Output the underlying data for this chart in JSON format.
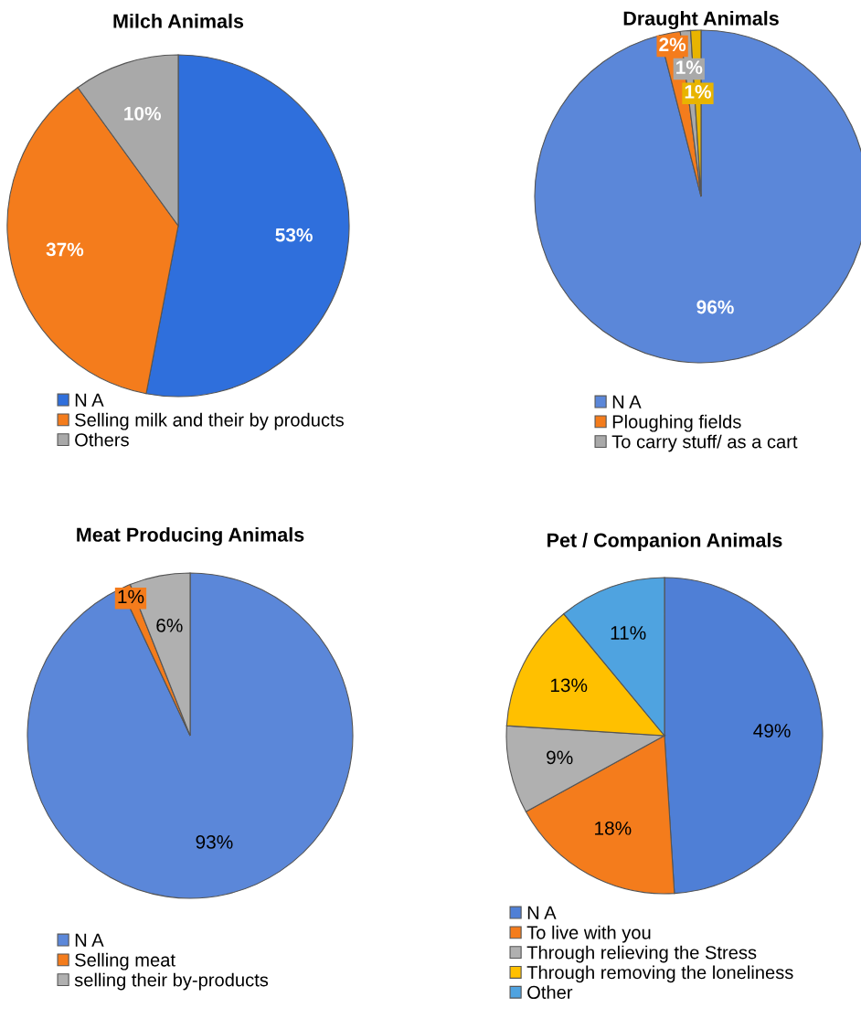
{
  "chart_data": [
    {
      "type": "pie",
      "title": "Milch Animals",
      "categories": [
        "N A",
        "Selling milk and their by products",
        "Others"
      ],
      "values": [
        53,
        37,
        10
      ],
      "colors": [
        "#2f6fdc",
        "#f47c1c",
        "#a9a9a9"
      ],
      "value_labels": [
        "53%",
        "37%",
        "10%"
      ],
      "legend": "bottom"
    },
    {
      "type": "pie",
      "title": "Draught Animals",
      "categories": [
        "N A",
        "Ploughing fields",
        "To carry stuff/ as a cart",
        null
      ],
      "values": [
        96,
        2,
        1,
        1
      ],
      "colors": [
        "#5b87d9",
        "#f47c1c",
        "#a9a9a9",
        "#e8b400"
      ],
      "value_labels": [
        "96%",
        "2%",
        "1%",
        "1%"
      ],
      "legend": "bottom"
    },
    {
      "type": "pie",
      "title": "Meat Producing Animals",
      "categories": [
        "N A",
        "Selling meat",
        "selling their by-products"
      ],
      "values": [
        93,
        1,
        6
      ],
      "colors": [
        "#5b87d9",
        "#f47c1c",
        "#b0b0b0"
      ],
      "value_labels": [
        "93%",
        "1%",
        "6%"
      ],
      "legend": "bottom"
    },
    {
      "type": "pie",
      "title": "Pet / Companion Animals",
      "categories": [
        "N A",
        "To live with you",
        "Through relieving the Stress",
        "Through removing the loneliness",
        "Other"
      ],
      "values": [
        49,
        18,
        9,
        13,
        11
      ],
      "colors": [
        "#4f7fd6",
        "#f47c1c",
        "#b0b0b0",
        "#ffc000",
        "#4fa3e0"
      ],
      "value_labels": [
        "49%",
        "18%",
        "9%",
        "13%",
        "11%"
      ],
      "legend": "bottom"
    }
  ]
}
